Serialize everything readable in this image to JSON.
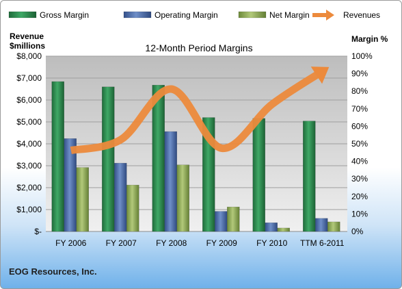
{
  "chart_data": {
    "type": "bar",
    "title": "12-Month Period Margins",
    "categories": [
      "FY 2006",
      "FY 2007",
      "FY 2008",
      "FY 2009",
      "FY 2010",
      "TTM 6-2011"
    ],
    "series": [
      {
        "name": "Gross Margin",
        "axis": "right",
        "type": "bar",
        "color": "#2e8b4e",
        "values": [
          85.5,
          82.5,
          83.5,
          65,
          64.5,
          63
        ]
      },
      {
        "name": "Operating Margin",
        "axis": "right",
        "type": "bar",
        "color": "#4f6fa8",
        "values": [
          53,
          39,
          57,
          11.5,
          5,
          7.5
        ]
      },
      {
        "name": "Net Margin",
        "axis": "right",
        "type": "bar",
        "color": "#8fa95a",
        "values": [
          36.5,
          26.5,
          38,
          14,
          2,
          5.5
        ]
      },
      {
        "name": "Revenues",
        "axis": "left",
        "type": "line",
        "color": "#ec8a3c",
        "values": [
          3700,
          4200,
          6500,
          3800,
          5800,
          7300
        ]
      }
    ],
    "left_axis": {
      "title_line1": "Revenue",
      "title_line2": "$millions",
      "min": 0,
      "max": 8000,
      "step": 1000,
      "tick_labels": [
        "$-",
        "$1,000",
        "$2,000",
        "$3,000",
        "$4,000",
        "$5,000",
        "$6,000",
        "$7,000",
        "$8,000"
      ]
    },
    "right_axis": {
      "title": "Margin %",
      "min": 0,
      "max": 100,
      "step": 10,
      "tick_labels": [
        "0%",
        "10%",
        "20%",
        "30%",
        "40%",
        "50%",
        "60%",
        "70%",
        "80%",
        "90%",
        "100%"
      ]
    },
    "legend_position": "top",
    "gridlines": true
  },
  "footer": {
    "company": "EOG Resources, Inc."
  }
}
